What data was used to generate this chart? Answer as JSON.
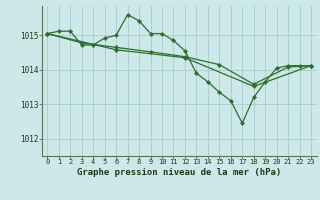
{
  "title": "Graphe pression niveau de la mer (hPa)",
  "bg_color": "#cce8e8",
  "grid_color": "#aacccc",
  "line_color": "#2d6e2d",
  "marker_color": "#2d6e2d",
  "ylim": [
    1011.5,
    1015.85
  ],
  "xlim": [
    -0.5,
    23.5
  ],
  "yticks": [
    1012,
    1013,
    1014,
    1015
  ],
  "xticks": [
    0,
    1,
    2,
    3,
    4,
    5,
    6,
    7,
    8,
    9,
    10,
    11,
    12,
    13,
    14,
    15,
    16,
    17,
    18,
    19,
    20,
    21,
    22,
    23
  ],
  "series1": [
    [
      0,
      1015.05
    ],
    [
      1,
      1015.12
    ],
    [
      2,
      1015.12
    ],
    [
      3,
      1014.72
    ],
    [
      4,
      1014.72
    ],
    [
      5,
      1014.92
    ],
    [
      6,
      1015.0
    ],
    [
      7,
      1015.6
    ],
    [
      8,
      1015.42
    ],
    [
      9,
      1015.05
    ],
    [
      10,
      1015.05
    ],
    [
      11,
      1014.85
    ],
    [
      12,
      1014.55
    ],
    [
      13,
      1013.9
    ],
    [
      14,
      1013.65
    ],
    [
      15,
      1013.35
    ],
    [
      16,
      1013.1
    ],
    [
      17,
      1012.45
    ],
    [
      18,
      1013.2
    ],
    [
      19,
      1013.65
    ],
    [
      20,
      1014.05
    ],
    [
      21,
      1014.12
    ],
    [
      22,
      1014.12
    ],
    [
      23,
      1014.12
    ]
  ],
  "series2": [
    [
      0,
      1015.05
    ],
    [
      3,
      1014.78
    ],
    [
      6,
      1014.65
    ],
    [
      9,
      1014.52
    ],
    [
      12,
      1014.38
    ],
    [
      15,
      1014.15
    ],
    [
      18,
      1013.58
    ],
    [
      21,
      1014.08
    ],
    [
      23,
      1014.12
    ]
  ],
  "series3": [
    [
      0,
      1015.05
    ],
    [
      6,
      1014.58
    ],
    [
      12,
      1014.35
    ],
    [
      18,
      1013.52
    ],
    [
      23,
      1014.12
    ]
  ]
}
